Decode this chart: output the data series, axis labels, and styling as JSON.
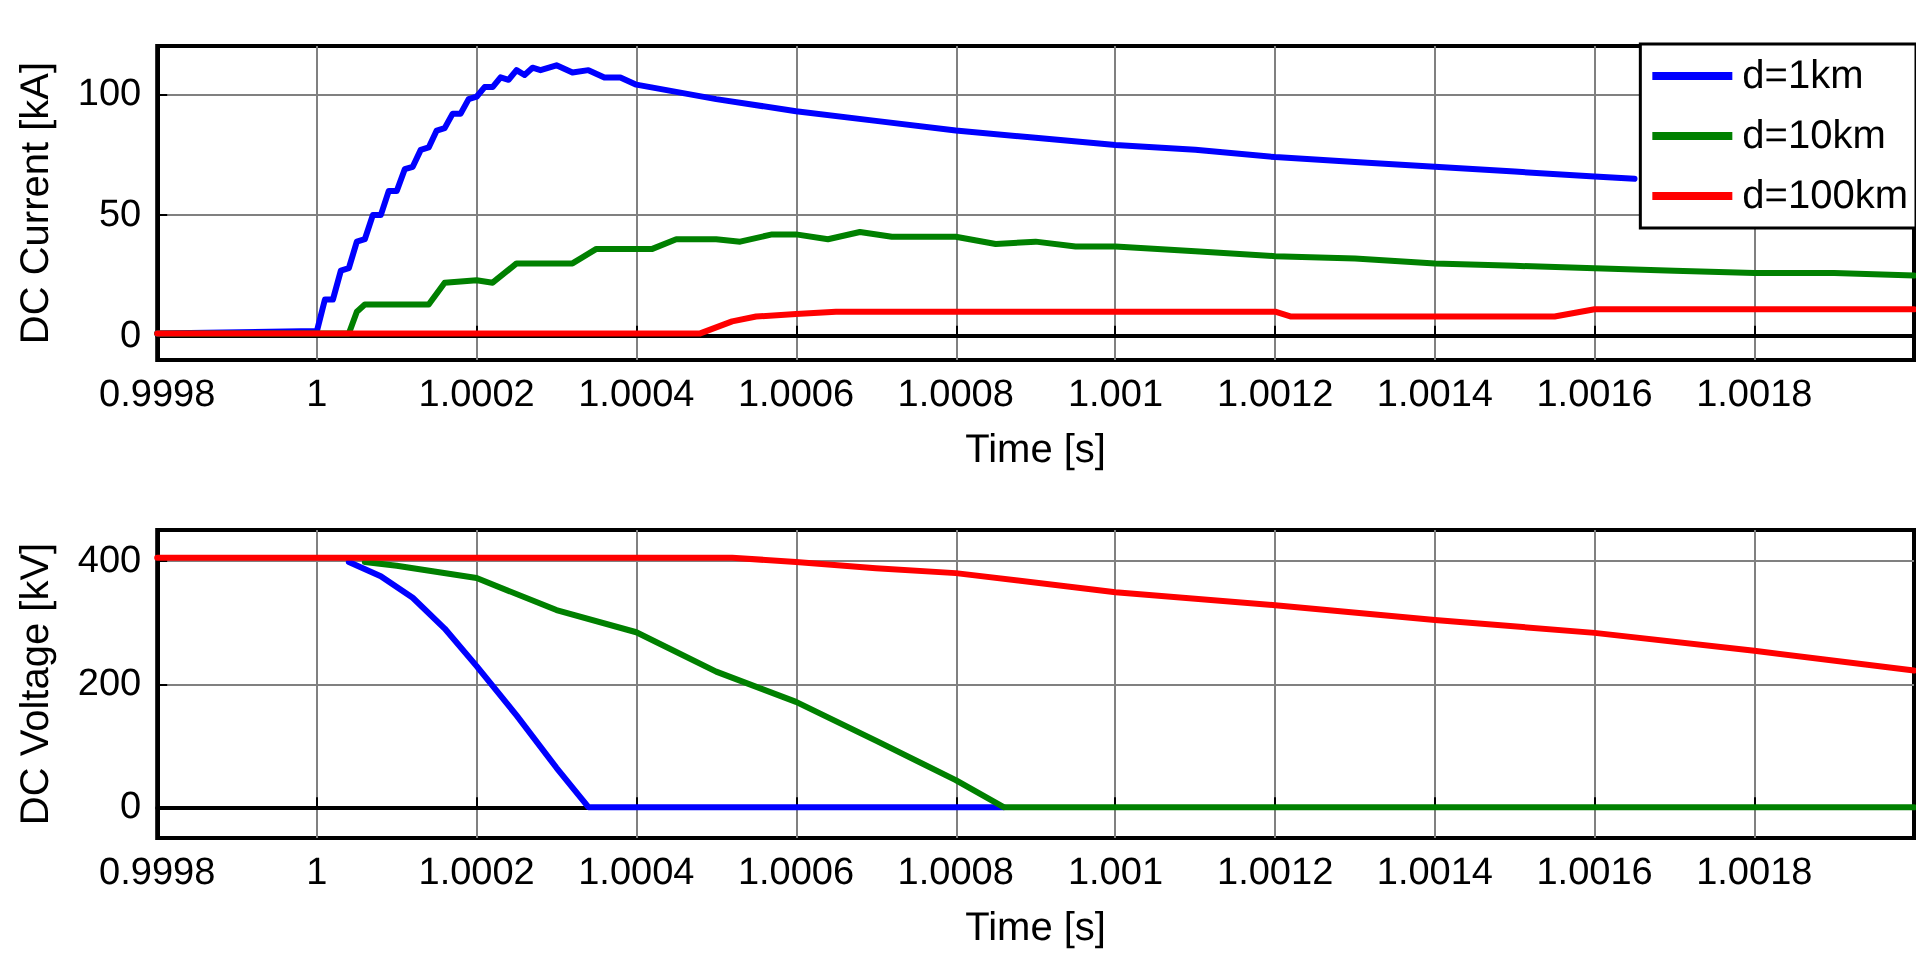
{
  "chart_data": [
    {
      "type": "line",
      "xlabel": "Time [s]",
      "ylabel": "DC Current [kA]",
      "xlim": [
        0.9998,
        1.002
      ],
      "xticks": [
        0.9998,
        1,
        1.0002,
        1.0004,
        1.0006,
        1.0008,
        1.001,
        1.0012,
        1.0014,
        1.0016,
        1.0018
      ],
      "ylim": [
        -10,
        120
      ],
      "yticks": [
        0,
        50,
        100
      ],
      "grid": true,
      "legend": "top right",
      "marker": "none",
      "line_style": "solid",
      "series": [
        {
          "name": "d=1km",
          "color": "#0000ff",
          "x": [
            0.9998,
            1,
            1.00001,
            1.00002,
            1.00003,
            1.00004,
            1.00005,
            1.00006,
            1.00007,
            1.00008,
            1.00009,
            1.0001,
            1.00011,
            1.00012,
            1.00013,
            1.00014,
            1.00015,
            1.00016,
            1.00017,
            1.00018,
            1.00019,
            1.0002,
            1.00021,
            1.00022,
            1.00023,
            1.00024,
            1.00025,
            1.00026,
            1.00027,
            1.00028,
            1.0003,
            1.00032,
            1.00034,
            1.00036,
            1.00038,
            1.0004,
            1.00045,
            1.0005,
            1.0006,
            1.0007,
            1.0008,
            1.0009,
            1.001,
            1.0011,
            1.0012,
            1.0013,
            1.0014,
            1.0015,
            1.0016,
            1.00165
          ],
          "values": [
            1,
            2,
            15,
            15,
            27,
            28,
            39,
            40,
            50,
            50,
            60,
            60,
            69,
            70,
            77,
            78,
            85,
            86,
            92,
            92,
            98,
            99,
            103,
            103,
            107,
            106,
            110,
            108,
            111,
            110,
            112,
            109,
            110,
            107,
            107,
            104,
            101,
            98,
            93,
            89,
            85,
            82,
            79,
            77,
            74,
            72,
            70,
            68,
            66,
            65
          ]
        },
        {
          "name": "d=10km",
          "color": "#008000",
          "x": [
            0.9998,
            1.00004,
            1.00005,
            1.00006,
            1.00014,
            1.00016,
            1.0002,
            1.00022,
            1.00025,
            1.0003,
            1.00032,
            1.00035,
            1.0004,
            1.00042,
            1.00045,
            1.0005,
            1.00053,
            1.00057,
            1.0006,
            1.00064,
            1.00068,
            1.00072,
            1.00076,
            1.0008,
            1.00085,
            1.0009,
            1.00095,
            1.001,
            1.0011,
            1.0012,
            1.0013,
            1.0014,
            1.0015,
            1.0016,
            1.0017,
            1.0018,
            1.0019,
            1.002
          ],
          "values": [
            1,
            1,
            10,
            13,
            13,
            22,
            23,
            22,
            30,
            30,
            30,
            36,
            36,
            36,
            40,
            40,
            39,
            42,
            42,
            40,
            43,
            41,
            41,
            41,
            38,
            39,
            37,
            37,
            35,
            33,
            32,
            30,
            29,
            28,
            27,
            26,
            26,
            25
          ]
        },
        {
          "name": "d=100km",
          "color": "#ff0000",
          "x": [
            0.9998,
            1.00048,
            1.00052,
            1.00055,
            1.0006,
            1.00065,
            1.0008,
            1.001,
            1.0012,
            1.00122,
            1.0014,
            1.00155,
            1.0016,
            1.0017,
            1.0018,
            1.002
          ],
          "values": [
            1,
            1,
            6,
            8,
            9,
            10,
            10,
            10,
            10,
            8,
            8,
            8,
            11,
            11,
            11,
            11
          ]
        }
      ]
    },
    {
      "type": "line",
      "xlabel": "Time [s]",
      "ylabel": "DC Voltage [kV]",
      "xlim": [
        0.9998,
        1.002
      ],
      "xticks": [
        0.9998,
        1,
        1.0002,
        1.0004,
        1.0006,
        1.0008,
        1.001,
        1.0012,
        1.0014,
        1.0016,
        1.0018
      ],
      "ylim": [
        -50,
        450
      ],
      "yticks": [
        0,
        200,
        400
      ],
      "grid": true,
      "marker": "none",
      "line_style": "solid",
      "series": [
        {
          "color": "#0000ff",
          "x": [
            1.00004,
            1.00008,
            1.00012,
            1.00016,
            1.0002,
            1.00025,
            1.0003,
            1.00034,
            1.00086
          ],
          "values": [
            398,
            375,
            340,
            290,
            229,
            149,
            64,
            0,
            0
          ]
        },
        {
          "color": "#008000",
          "x": [
            1.00006,
            1.0001,
            1.0002,
            1.0003,
            1.0004,
            1.0005,
            1.0006,
            1.0007,
            1.0008,
            1.00086,
            1.002
          ],
          "values": [
            398,
            392,
            372,
            320,
            284,
            220,
            171,
            108,
            44,
            0,
            0
          ]
        },
        {
          "color": "#ff0000",
          "x": [
            0.9998,
            1.00052,
            1.0006,
            1.0007,
            1.0008,
            1.001,
            1.0012,
            1.0014,
            1.0016,
            1.0018,
            1.002
          ],
          "values": [
            405,
            405,
            398,
            388,
            380,
            349,
            328,
            304,
            283,
            254,
            222
          ]
        }
      ]
    }
  ]
}
